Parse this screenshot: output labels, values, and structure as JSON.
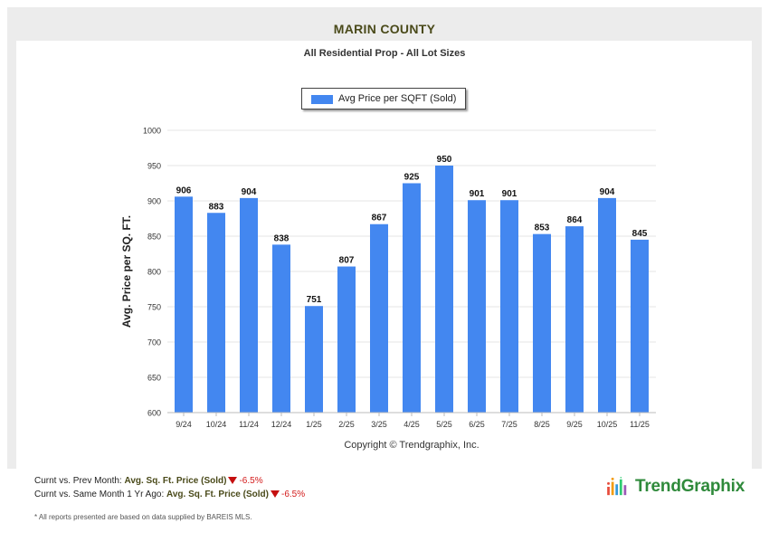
{
  "header": {
    "title": "MARIN COUNTY",
    "subtitle": "All Residential Prop - All Lot Sizes"
  },
  "chart_data": {
    "type": "bar",
    "categories": [
      "9/24",
      "10/24",
      "11/24",
      "12/24",
      "1/25",
      "2/25",
      "3/25",
      "4/25",
      "5/25",
      "6/25",
      "7/25",
      "8/25",
      "9/25",
      "10/25",
      "11/25"
    ],
    "series": [
      {
        "name": "Avg Price per SQFT (Sold)",
        "values": [
          906,
          883,
          904,
          838,
          751,
          807,
          867,
          925,
          950,
          901,
          901,
          853,
          864,
          904,
          845
        ]
      }
    ],
    "ylabel": "Avg. Price per SQ. FT.",
    "xlabel": "",
    "ylim": [
      600,
      1000
    ],
    "yticks": [
      600,
      650,
      700,
      750,
      800,
      850,
      900,
      950,
      1000
    ],
    "grid": true,
    "legend_position": "top-center",
    "bar_color": "#4387f0"
  },
  "copyright": "Copyright © Trendgraphix, Inc.",
  "stats": {
    "line1_prefix": "Curnt vs. Prev Month:",
    "line1_metric": "Avg. Sq. Ft. Price (Sold)",
    "line1_value": "-6.5%",
    "line2_prefix": "Curnt vs. Same Month 1 Yr Ago:",
    "line2_metric": "Avg. Sq. Ft. Price (Sold)",
    "line2_value": "-6.5%"
  },
  "logo": {
    "text": "TrendGraphix",
    "icon": "trendgraphix-bars-icon"
  },
  "footnote": "* All reports presented are based on data supplied by BAREIS MLS."
}
